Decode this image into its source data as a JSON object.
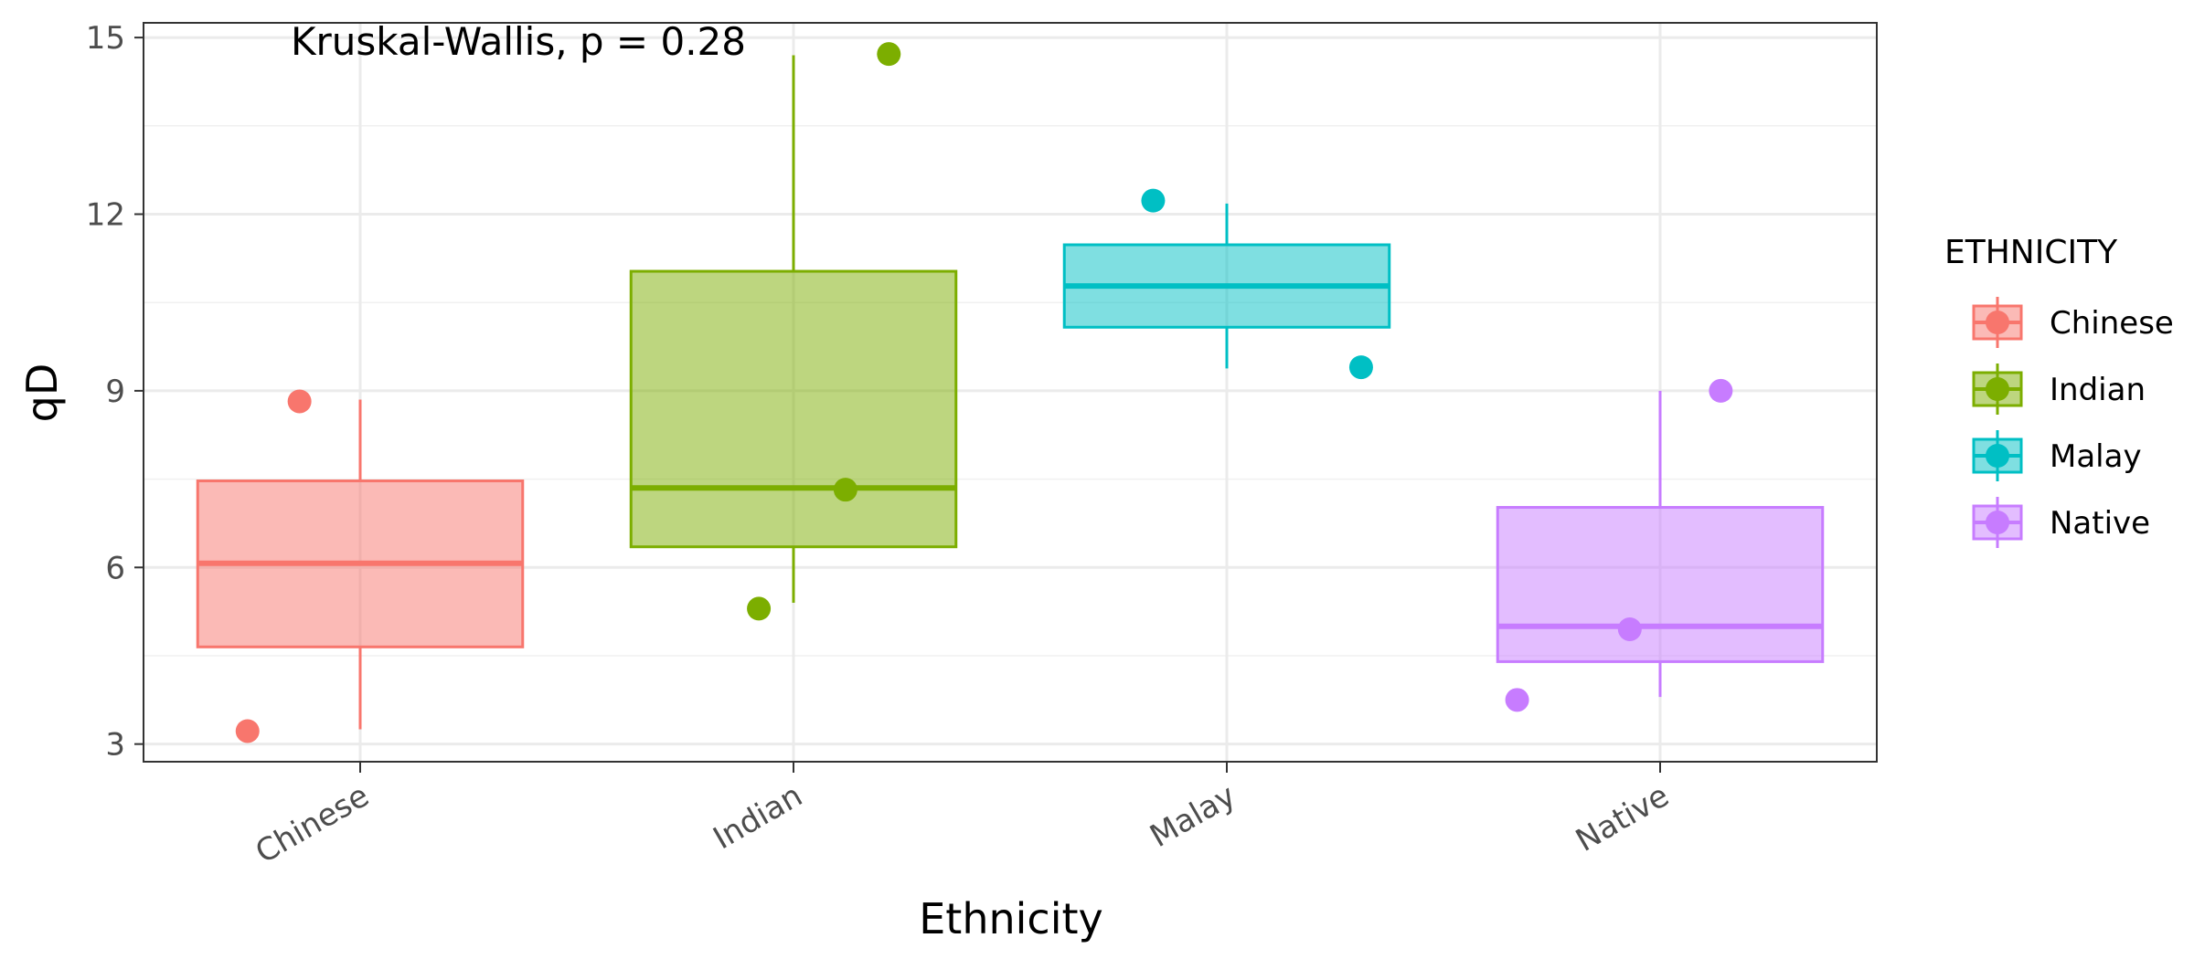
{
  "chart_data": {
    "type": "box",
    "xlabel": "Ethnicity",
    "ylabel": "qD",
    "ylim": [
      2.7,
      15.25
    ],
    "yticks": [
      3,
      6,
      9,
      12,
      15
    ],
    "grid": true,
    "annotation": "Kruskal-Wallis, p = 0.28",
    "legend": {
      "title": "ETHNICITY",
      "position": "right"
    },
    "categories": [
      "Chinese",
      "Indian",
      "Malay",
      "Native"
    ],
    "colors": {
      "Chinese": "#F8766D",
      "Indian": "#7CAE00",
      "Malay": "#00BFC4",
      "Native": "#C77CFF"
    },
    "boxes": [
      {
        "group": "Chinese",
        "whisker_low": 3.25,
        "q1": 4.65,
        "median": 6.07,
        "q3": 7.47,
        "whisker_high": 8.85
      },
      {
        "group": "Indian",
        "whisker_low": 5.4,
        "q1": 6.35,
        "median": 7.35,
        "q3": 11.03,
        "whisker_high": 14.7
      },
      {
        "group": "Malay",
        "whisker_low": 9.38,
        "q1": 10.08,
        "median": 10.78,
        "q3": 11.48,
        "whisker_high": 12.18
      },
      {
        "group": "Native",
        "whisker_low": 3.8,
        "q1": 4.4,
        "median": 5.0,
        "q3": 7.02,
        "whisker_high": 9.0
      }
    ],
    "points": [
      {
        "group": "Chinese",
        "jitter": -0.26,
        "y": 3.22
      },
      {
        "group": "Chinese",
        "jitter": -0.14,
        "y": 8.82
      },
      {
        "group": "Indian",
        "jitter": -0.08,
        "y": 5.3
      },
      {
        "group": "Indian",
        "jitter": 0.12,
        "y": 7.32
      },
      {
        "group": "Indian",
        "jitter": 0.22,
        "y": 14.72
      },
      {
        "group": "Malay",
        "jitter": -0.17,
        "y": 12.23
      },
      {
        "group": "Malay",
        "jitter": 0.31,
        "y": 9.4
      },
      {
        "group": "Native",
        "jitter": -0.33,
        "y": 3.75
      },
      {
        "group": "Native",
        "jitter": -0.07,
        "y": 4.95
      },
      {
        "group": "Native",
        "jitter": 0.14,
        "y": 9.0
      }
    ]
  }
}
